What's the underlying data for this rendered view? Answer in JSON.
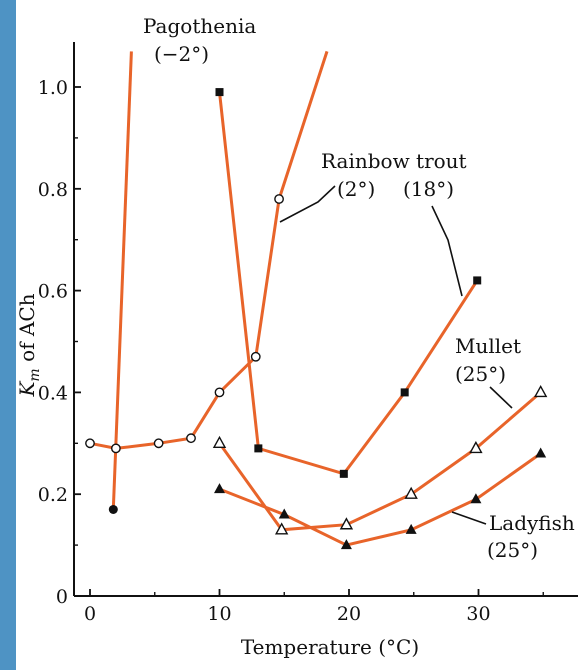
{
  "colors": {
    "line": "#e8642a",
    "marker": "#111111",
    "background": "#ffffff",
    "page_edge": "#4e93c4"
  },
  "chart_data": {
    "type": "line",
    "xlabel": "Temperature (°C)",
    "ylabel_main": "K",
    "ylabel_sub": "m",
    "ylabel_rest": " of ACh",
    "xlim": [
      -1,
      36
    ],
    "ylim": [
      0,
      1.05
    ],
    "xticks": [
      0,
      10,
      20,
      30
    ],
    "yticks": [
      0,
      0.2,
      0.4,
      0.6,
      0.8,
      1.0
    ],
    "ytick_labels": [
      "0",
      "0.2",
      "0.4",
      "0.6",
      "0.8",
      "1.0"
    ],
    "grid": false,
    "series": [
      {
        "name": "Pagothenia (−2°)",
        "marker": "filled-circle",
        "x": [
          1.8,
          3.2
        ],
        "y": [
          0.17,
          1.07
        ]
      },
      {
        "name": "Rainbow trout (2°)",
        "marker": "open-circle",
        "x": [
          0,
          2,
          5.3,
          7.8,
          10,
          12.8,
          14.6,
          18.3
        ],
        "y": [
          0.3,
          0.29,
          0.3,
          0.31,
          0.4,
          0.47,
          0.78,
          1.07
        ]
      },
      {
        "name": "Rainbow trout (18°)",
        "marker": "filled-square",
        "x": [
          10,
          13,
          19.6,
          24.3,
          29.9
        ],
        "y": [
          0.99,
          0.29,
          0.24,
          0.4,
          0.62
        ]
      },
      {
        "name": "Mullet (25°)",
        "marker": "open-triangle",
        "x": [
          10,
          14.8,
          19.8,
          24.8,
          29.8,
          34.8
        ],
        "y": [
          0.3,
          0.13,
          0.14,
          0.2,
          0.29,
          0.4
        ]
      },
      {
        "name": "Ladyfish (25°)",
        "marker": "filled-triangle",
        "x": [
          10,
          15,
          19.8,
          24.8,
          29.8,
          34.8
        ],
        "y": [
          0.21,
          0.16,
          0.1,
          0.13,
          0.19,
          0.28
        ]
      }
    ],
    "annotations": [
      {
        "id": "pagothenia_name",
        "text": "Pagothenia"
      },
      {
        "id": "pagothenia_temp",
        "text": "(−2°)"
      },
      {
        "id": "trout_name",
        "text": "Rainbow trout"
      },
      {
        "id": "trout_temp_2",
        "text": "(2°)"
      },
      {
        "id": "trout_temp_18",
        "text": "(18°)"
      },
      {
        "id": "mullet_name",
        "text": "Mullet"
      },
      {
        "id": "mullet_temp",
        "text": "(25°)"
      },
      {
        "id": "ladyfish_name",
        "text": "Ladyfish"
      },
      {
        "id": "ladyfish_temp",
        "text": "(25°)"
      }
    ]
  }
}
